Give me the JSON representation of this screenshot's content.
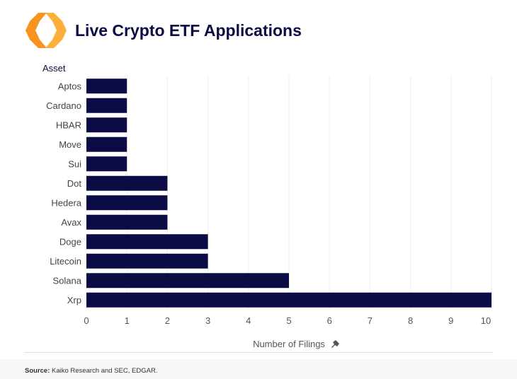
{
  "header": {
    "title": "Live Crypto ETF Applications"
  },
  "chart_data": {
    "type": "bar",
    "orientation": "horizontal",
    "title": "Live Crypto ETF Applications",
    "ylabel": "Asset",
    "xlabel": "Number of Filings",
    "categories": [
      "Aptos",
      "Cardano",
      "HBAR",
      "Move",
      "Sui",
      "Dot",
      "Hedera",
      "Avax",
      "Doge",
      "Litecoin",
      "Solana",
      "Xrp"
    ],
    "values": [
      1,
      1,
      1,
      1,
      1,
      2,
      2,
      2,
      3,
      3,
      5,
      10
    ],
    "xlim": [
      0,
      10
    ],
    "xticks": [
      "0",
      "1",
      "2",
      "3",
      "4",
      "5",
      "6",
      "7",
      "8",
      "9",
      "10"
    ],
    "grid": "vertical",
    "bar_color": "#0b0b45"
  },
  "footer": {
    "source_label": "Source:",
    "source_text": " Kaiko Research and SEC, EDGAR."
  },
  "icons": {
    "logo": "kaiko-logo",
    "axis_pin": "pin-icon"
  }
}
